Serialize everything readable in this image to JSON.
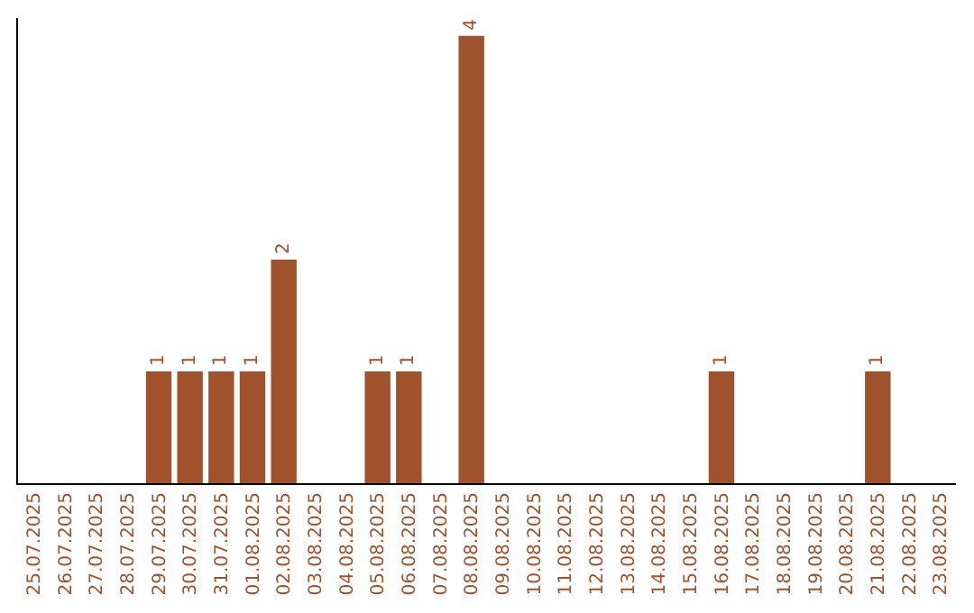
{
  "chart_data": {
    "type": "bar",
    "categories": [
      "25.07.2025",
      "26.07.2025",
      "27.07.2025",
      "28.07.2025",
      "29.07.2025",
      "30.07.2025",
      "31.07.2025",
      "01.08.2025",
      "02.08.2025",
      "03.08.2025",
      "04.08.2025",
      "05.08.2025",
      "06.08.2025",
      "07.08.2025",
      "08.08.2025",
      "09.08.2025",
      "10.08.2025",
      "11.08.2025",
      "12.08.2025",
      "13.08.2025",
      "14.08.2025",
      "15.08.2025",
      "16.08.2025",
      "17.08.2025",
      "18.08.2025",
      "19.08.2025",
      "20.08.2025",
      "21.08.2025",
      "22.08.2025",
      "23.08.2025"
    ],
    "values": [
      0,
      0,
      0,
      0,
      1,
      1,
      1,
      1,
      2,
      0,
      0,
      1,
      1,
      0,
      4,
      0,
      0,
      0,
      0,
      0,
      0,
      0,
      1,
      0,
      0,
      0,
      0,
      1,
      0,
      0
    ],
    "value_labels": [
      null,
      null,
      null,
      null,
      "1",
      "1",
      "1",
      "1",
      "2",
      null,
      null,
      "1",
      "1",
      null,
      "4",
      null,
      null,
      null,
      null,
      null,
      null,
      null,
      "1",
      null,
      null,
      null,
      null,
      "1",
      null,
      null
    ],
    "color": "#a0522d",
    "ylim": [
      0,
      4.16
    ],
    "tick_labels": "x"
  }
}
